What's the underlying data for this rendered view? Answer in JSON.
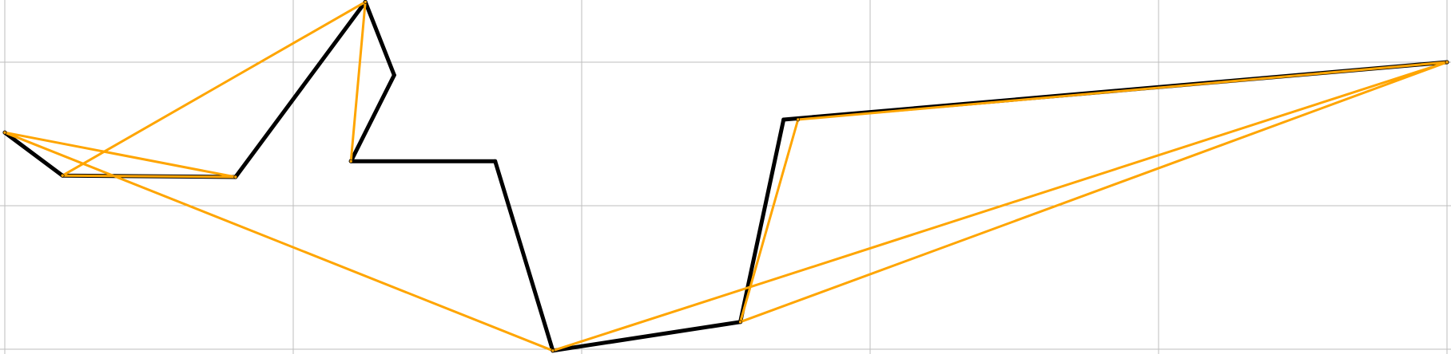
{
  "chart_data": {
    "type": "line",
    "title": "",
    "xlabel": "",
    "ylabel": "",
    "xlim": [
      0,
      5.03
    ],
    "ylim": [
      -0.02,
      2.44
    ],
    "grid": true,
    "xticks": [
      0,
      1,
      2,
      3,
      4,
      5
    ],
    "yticks": [
      0,
      1,
      2
    ],
    "colors": {
      "black_series": "#000000",
      "orange_series": "#ffa500",
      "grid": "#bdbdbd"
    },
    "series": [
      {
        "color": "#000000",
        "x": [
          0.0,
          0.2,
          0.8,
          1.25,
          1.35,
          1.2,
          1.7,
          1.9,
          2.55,
          2.7,
          5.0
        ],
        "y": [
          1.51,
          1.21,
          1.2,
          2.42,
          1.91,
          1.31,
          1.31,
          -0.01,
          0.19,
          1.6,
          2.0
        ]
      },
      {
        "color": "#ffa500",
        "x": [
          0.0,
          0.8,
          0.2,
          1.25,
          1.2,
          1.25,
          0.2,
          0.8,
          0.0,
          1.9,
          5.0,
          2.55,
          2.75,
          5.0,
          1.9
        ],
        "y": [
          1.51,
          1.2,
          1.21,
          2.42,
          1.31,
          2.42,
          1.21,
          1.2,
          1.51,
          -0.01,
          2.0,
          0.19,
          1.6,
          2.0,
          -0.01
        ]
      }
    ]
  }
}
